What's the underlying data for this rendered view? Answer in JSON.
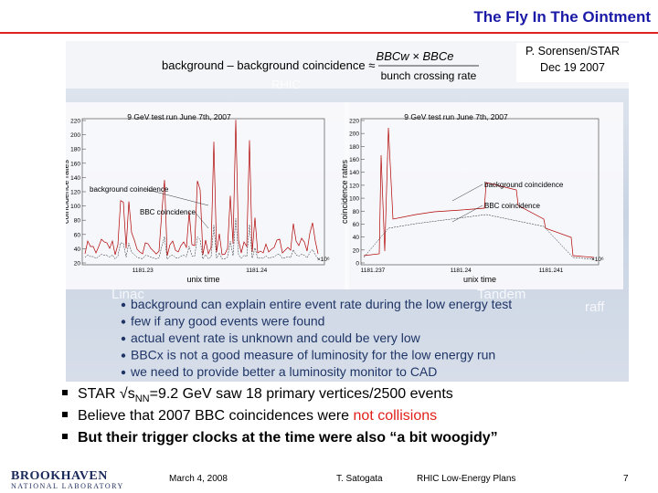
{
  "header": {
    "title": "The Fly In The Ointment",
    "author": "P. Sorensen/STAR",
    "date": "Dec 19 2007"
  },
  "figure": {
    "formula": {
      "lhs": "background – background coincidence ≈",
      "numerator": "BBCw × BBCe",
      "denominator": "bunch crossing rate"
    },
    "background_labels": [
      "RHIC",
      "Linac",
      "Tandem",
      "raff"
    ],
    "plots": [
      {
        "title": "9 GeV test run June 7th, 2007",
        "y_label": "coincidence rates",
        "y_ticks": [
          "220",
          "200",
          "180",
          "160",
          "140",
          "120",
          "100",
          "80",
          "60",
          "40",
          "20"
        ],
        "x_label": "unix time",
        "x_ticks": [
          "1181.23",
          "1181.24"
        ],
        "x_scale": "×10⁶",
        "annotations": [
          "background coincidence",
          "BBC coincidence"
        ]
      },
      {
        "title": "9 GeV test run June 7th, 2007",
        "y_label": "coincidence rates",
        "y_ticks": [
          "220",
          "200",
          "180",
          "160",
          "140",
          "120",
          "100",
          "80",
          "60",
          "40",
          "20",
          "0"
        ],
        "x_label": "unix time",
        "x_ticks": [
          "1181.237",
          "1181.24",
          "1181.241"
        ],
        "x_scale": "×10⁶",
        "annotations": [
          "background coincidence",
          "BBC coincidence"
        ]
      }
    ],
    "bullets": [
      "background can explain entire event rate during the low energy test",
      "few if any good events were found",
      "actual event rate is unknown and could be very low",
      "BBCx is not a good measure of luminosity for the low energy run",
      "we need to provide better a luminosity monitor to CAD"
    ]
  },
  "bullets": [
    {
      "prefix": "STAR √s",
      "subscript": "NN",
      "suffix": "=9.2 GeV saw 18 primary vertices/2500 events"
    },
    {
      "text": "Believe that 2007 BBC coincidences were ",
      "highlight": "not collisions"
    },
    {
      "text": "But their trigger clocks at the time were also “a bit woogidy”"
    }
  ],
  "footer": {
    "logo_name": "BROOKHAVEN",
    "logo_subtitle": "NATIONAL LABORATORY",
    "date": "March 4, 2008",
    "author": "T. Satogata",
    "talk": "RHIC Low-Energy Plans",
    "page": "7"
  }
}
